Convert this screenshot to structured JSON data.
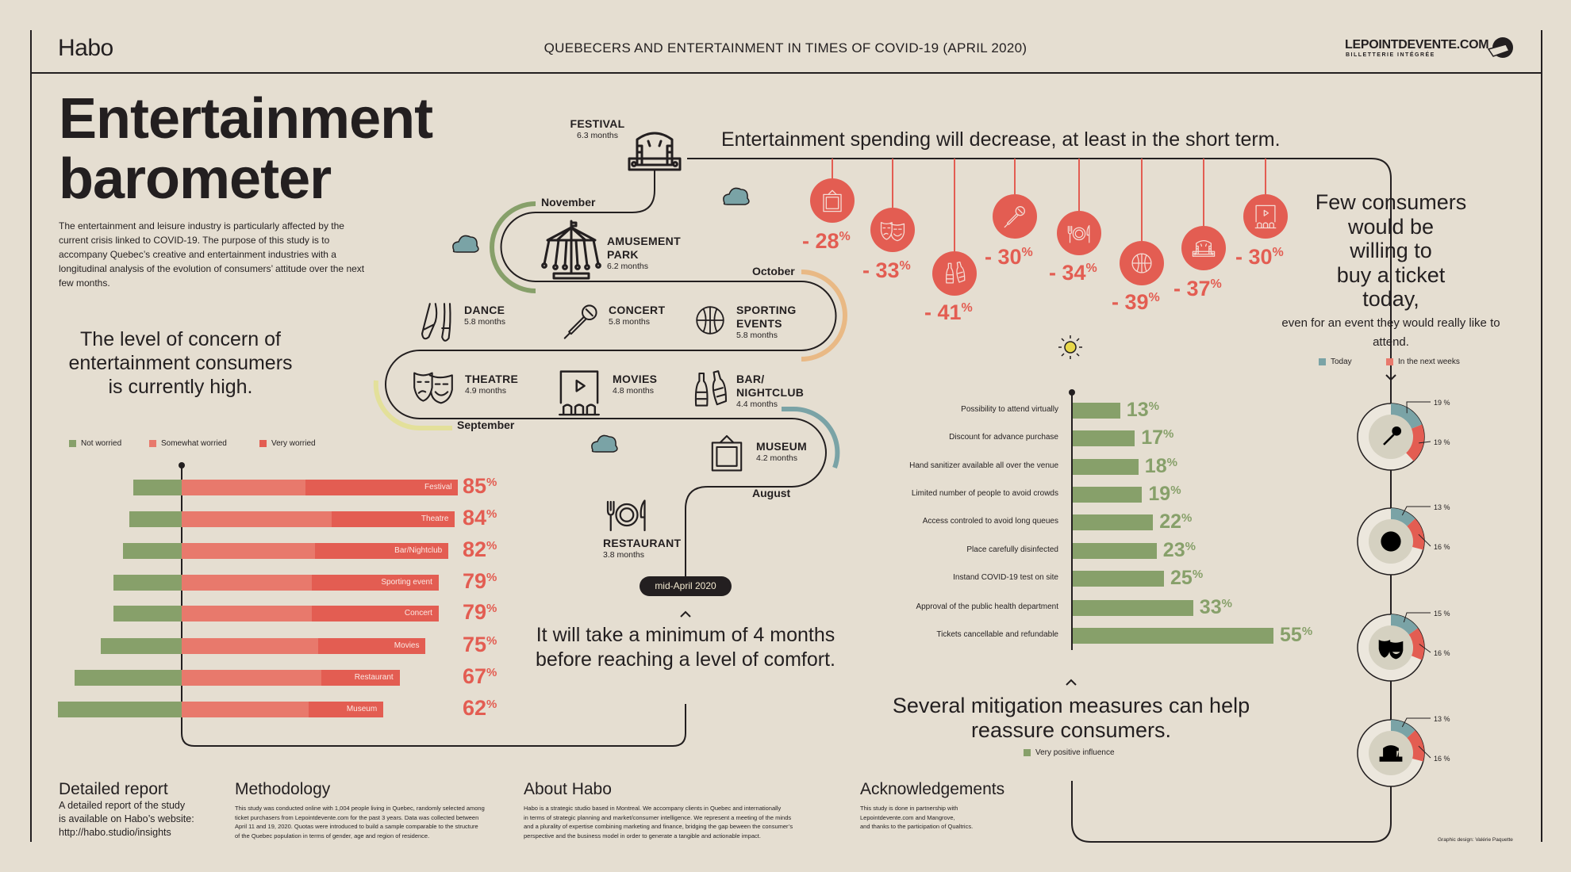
{
  "header": {
    "logo": "Habo",
    "title": "QUEBECERS AND ENTERTAINMENT IN TIMES OF COVID-19 (APRIL 2020)",
    "partner_logo": "LEPOINTDEVENTE.COM",
    "partner_tagline": "BILLETTERIE INTÉGRÉE"
  },
  "hero": {
    "title_line1": "Entertainment",
    "title_line2": "barometer",
    "intro": "The entertainment and leisure industry is particularly affected by the current crisis linked to COVID-19. The purpose of this study is to accompany Quebec’s creative and entertainment industries with a longitudinal analysis of the evolution of consumers’ attitude over the next few months."
  },
  "concern": {
    "heading": "The level of concern of entertainment consumers is currently high.",
    "legend": [
      "Not worried",
      "Somewhat worried",
      "Very worried"
    ],
    "colors": {
      "not": "#87a06a",
      "somewhat": "#e8796c",
      "very": "#e35d52"
    }
  },
  "timeline": {
    "items": [
      {
        "name": "FESTIVAL",
        "months": "6.3 months",
        "icon": "stage-icon"
      },
      {
        "name": "AMUSEMENT PARK",
        "months": "6.2 months",
        "icon": "carousel-icon"
      },
      {
        "name": "DANCE",
        "months": "5.8 months",
        "icon": "ballet-shoes-icon"
      },
      {
        "name": "CONCERT",
        "months": "5.8 months",
        "icon": "microphone-icon"
      },
      {
        "name": "SPORTING EVENTS",
        "months": "5.8 months",
        "icon": "basketball-icon"
      },
      {
        "name": "THEATRE",
        "months": "4.9 months",
        "icon": "theatre-masks-icon"
      },
      {
        "name": "MOVIES",
        "months": "4.8 months",
        "icon": "movie-screen-icon"
      },
      {
        "name": "BAR/ NIGHTCLUB",
        "months": "4.4 months",
        "icon": "beer-bottles-icon"
      },
      {
        "name": "MUSEUM",
        "months": "4.2 months",
        "icon": "picture-frame-icon"
      },
      {
        "name": "RESTAURANT",
        "months": "3.8 months",
        "icon": "plate-cutlery-icon"
      }
    ],
    "months": [
      "November",
      "October",
      "September",
      "August"
    ],
    "month_colors": [
      "#87a06a",
      "#e9b985",
      "#e3e09a",
      "#7aa3a6"
    ],
    "start": "mid-April 2020",
    "conclusion": "It will take a minimum of 4 months before reaching a level of comfort."
  },
  "spending": {
    "heading": "Entertainment spending will decrease, at least in the short term.",
    "items": [
      {
        "value": "- 28",
        "icon": "picture-frame-icon"
      },
      {
        "value": "- 33",
        "icon": "theatre-masks-icon"
      },
      {
        "value": "- 41",
        "icon": "beer-bottles-icon"
      },
      {
        "value": "- 30",
        "icon": "microphone-icon"
      },
      {
        "value": "- 34",
        "icon": "plate-cutlery-icon"
      },
      {
        "value": "- 39",
        "icon": "basketball-icon"
      },
      {
        "value": "- 37",
        "icon": "stage-icon"
      },
      {
        "value": "- 30",
        "icon": "movie-screen-icon"
      }
    ],
    "pct": "%"
  },
  "willingness": {
    "heading_lines": [
      "Few consumers",
      "would be",
      "willing to",
      "buy a ticket",
      "today,"
    ],
    "sub": "even for an event they would really like to attend.",
    "legend": [
      "Today",
      "In the next weeks"
    ],
    "colors": {
      "today": "#7aa3a6",
      "next": "#e35d52"
    }
  },
  "mitigation": {
    "heading": "Several mitigation measures can help reassure consumers.",
    "legend": "Very positive influence",
    "color": "#87a06a"
  },
  "chart_data": [
    {
      "type": "bar",
      "categories": [
        "Festival",
        "Theatre",
        "Bar/Nightclub",
        "Sporting event",
        "Concert",
        "Movies",
        "Restaurant",
        "Museum"
      ],
      "totals": [
        "85",
        "84",
        "82",
        "79",
        "79",
        "75",
        "67",
        "62"
      ],
      "series": [
        {
          "name": "Not worried",
          "values": [
            15,
            16,
            18,
            21,
            21,
            25,
            33,
            38
          ]
        },
        {
          "name": "Somewhat worried",
          "values": [
            38,
            46,
            41,
            40,
            40,
            42,
            43,
            39
          ]
        },
        {
          "name": "Very worried",
          "values": [
            47,
            38,
            41,
            39,
            39,
            33,
            24,
            23
          ]
        }
      ]
    },
    {
      "type": "bar",
      "categories": [
        "Possibility to attend virtually",
        "Discount for advance purchase",
        "Hand sanitizer available all over the venue",
        "Limited number of people to avoid crowds",
        "Access controled to avoid long queues",
        "Place carefully disinfected",
        "Instand COVID-19 test on site",
        "Approval of the public health department",
        "Tickets cancellable and refundable"
      ],
      "values": [
        13,
        17,
        18,
        19,
        22,
        23,
        25,
        33,
        55
      ],
      "series_name": "Very positive influence"
    },
    {
      "type": "pie",
      "items": [
        {
          "icon": "microphone-icon",
          "today": 19,
          "next": 19
        },
        {
          "icon": "basketball-icon",
          "today": 13,
          "next": 16
        },
        {
          "icon": "theatre-masks-icon",
          "today": 15,
          "next": 16
        },
        {
          "icon": "stage-icon",
          "today": 13,
          "next": 16
        }
      ],
      "pct_suffix": " %"
    }
  ],
  "footer": {
    "report_heading": "Detailed report",
    "report_body": [
      "A detailed report of the study",
      "is available on Habo’s website:",
      "http://habo.studio/insights"
    ],
    "method_heading": "Methodology",
    "method_body": [
      "This study was conducted online with 1,004 people living in Quebec, randomly selected among",
      "ticket purchasers from Lepointdevente.com for the past 3 years. Data was collected between",
      "April 11 and 19, 2020. Quotas were introduced to build a sample comparable to the structure",
      "of the Quebec population in terms of gender, age and region of residence."
    ],
    "about_heading": "About Habo",
    "about_body": [
      "Habo is a strategic studio based in Montreal. We accompany clients in Quebec and internationally",
      "in terms of strategic planning and market/consumer intelligence. We represent a meeting of the minds",
      "and a plurality of expertise combining marketing and finance, bridging the gap beween the consumer’s",
      "perspective and the business model in order to generate a tangible and actionable impact."
    ],
    "ack_heading": "Acknowledgements",
    "ack_body": [
      "This study is done in partnership with",
      "Lepointdevente.com and Mangrove,",
      "and thanks to the participation of Qualtrics."
    ],
    "credit": "Graphic design: Valérie Paquette"
  }
}
